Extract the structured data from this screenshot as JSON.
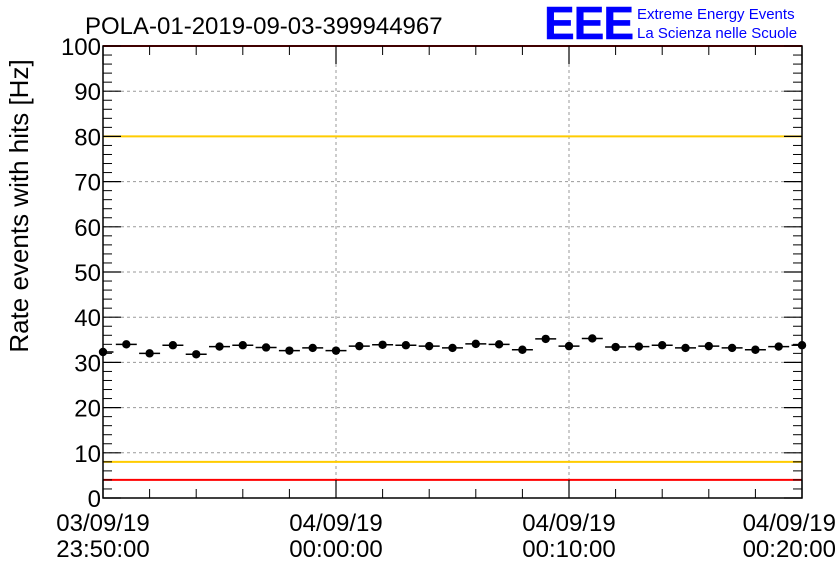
{
  "chart_data": {
    "type": "scatter",
    "title": "POLA-01-2019-09-03-399944967",
    "ylabel": "Rate events with hits [Hz]",
    "xlabel": "",
    "ylim": [
      0,
      100
    ],
    "y_ticks": [
      "0",
      "10",
      "20",
      "30",
      "40",
      "50",
      "60",
      "70",
      "80",
      "90",
      "100"
    ],
    "x_ticks": [
      {
        "date": "03/09/19",
        "time": "23:50:00"
      },
      {
        "date": "04/09/19",
        "time": "00:00:00"
      },
      {
        "date": "04/09/19",
        "time": "00:10:00"
      },
      {
        "date": "04/09/19",
        "time": "00:20:00"
      }
    ],
    "x_range": [
      "2019-09-03 23:50:00",
      "2019-09-04 00:20:00"
    ],
    "grid": true,
    "reference_lines": [
      {
        "y": 100,
        "color": "#ff0000"
      },
      {
        "y": 80,
        "color": "#ffcc00"
      },
      {
        "y": 8,
        "color": "#ffcc00"
      },
      {
        "y": 4,
        "color": "#ff0000"
      }
    ],
    "points": [
      {
        "x": "23:50:00",
        "y": 32.3
      },
      {
        "x": "23:51:00",
        "y": 34.0
      },
      {
        "x": "23:52:00",
        "y": 32.0
      },
      {
        "x": "23:53:00",
        "y": 33.8
      },
      {
        "x": "23:54:00",
        "y": 31.8
      },
      {
        "x": "23:55:00",
        "y": 33.5
      },
      {
        "x": "23:56:00",
        "y": 33.8
      },
      {
        "x": "23:57:00",
        "y": 33.3
      },
      {
        "x": "23:58:00",
        "y": 32.6
      },
      {
        "x": "23:59:00",
        "y": 33.2
      },
      {
        "x": "00:00:00",
        "y": 32.6
      },
      {
        "x": "00:01:00",
        "y": 33.6
      },
      {
        "x": "00:02:00",
        "y": 33.9
      },
      {
        "x": "00:03:00",
        "y": 33.8
      },
      {
        "x": "00:04:00",
        "y": 33.6
      },
      {
        "x": "00:05:00",
        "y": 33.2
      },
      {
        "x": "00:06:00",
        "y": 34.1
      },
      {
        "x": "00:07:00",
        "y": 34.0
      },
      {
        "x": "00:08:00",
        "y": 32.8
      },
      {
        "x": "00:09:00",
        "y": 35.2
      },
      {
        "x": "00:10:00",
        "y": 33.6
      },
      {
        "x": "00:11:00",
        "y": 35.3
      },
      {
        "x": "00:12:00",
        "y": 33.4
      },
      {
        "x": "00:13:00",
        "y": 33.5
      },
      {
        "x": "00:14:00",
        "y": 33.8
      },
      {
        "x": "00:15:00",
        "y": 33.2
      },
      {
        "x": "00:16:00",
        "y": 33.6
      },
      {
        "x": "00:17:00",
        "y": 33.2
      },
      {
        "x": "00:18:00",
        "y": 32.8
      },
      {
        "x": "00:19:00",
        "y": 33.5
      },
      {
        "x": "00:20:00",
        "y": 33.8
      }
    ],
    "marker_color": "#000000",
    "grid_color": "#9a9a9a"
  },
  "logo": {
    "text": "EEE",
    "line1": "Extreme Energy Events",
    "line2": "La Scienza nelle Scuole",
    "color": "#0000ff"
  }
}
